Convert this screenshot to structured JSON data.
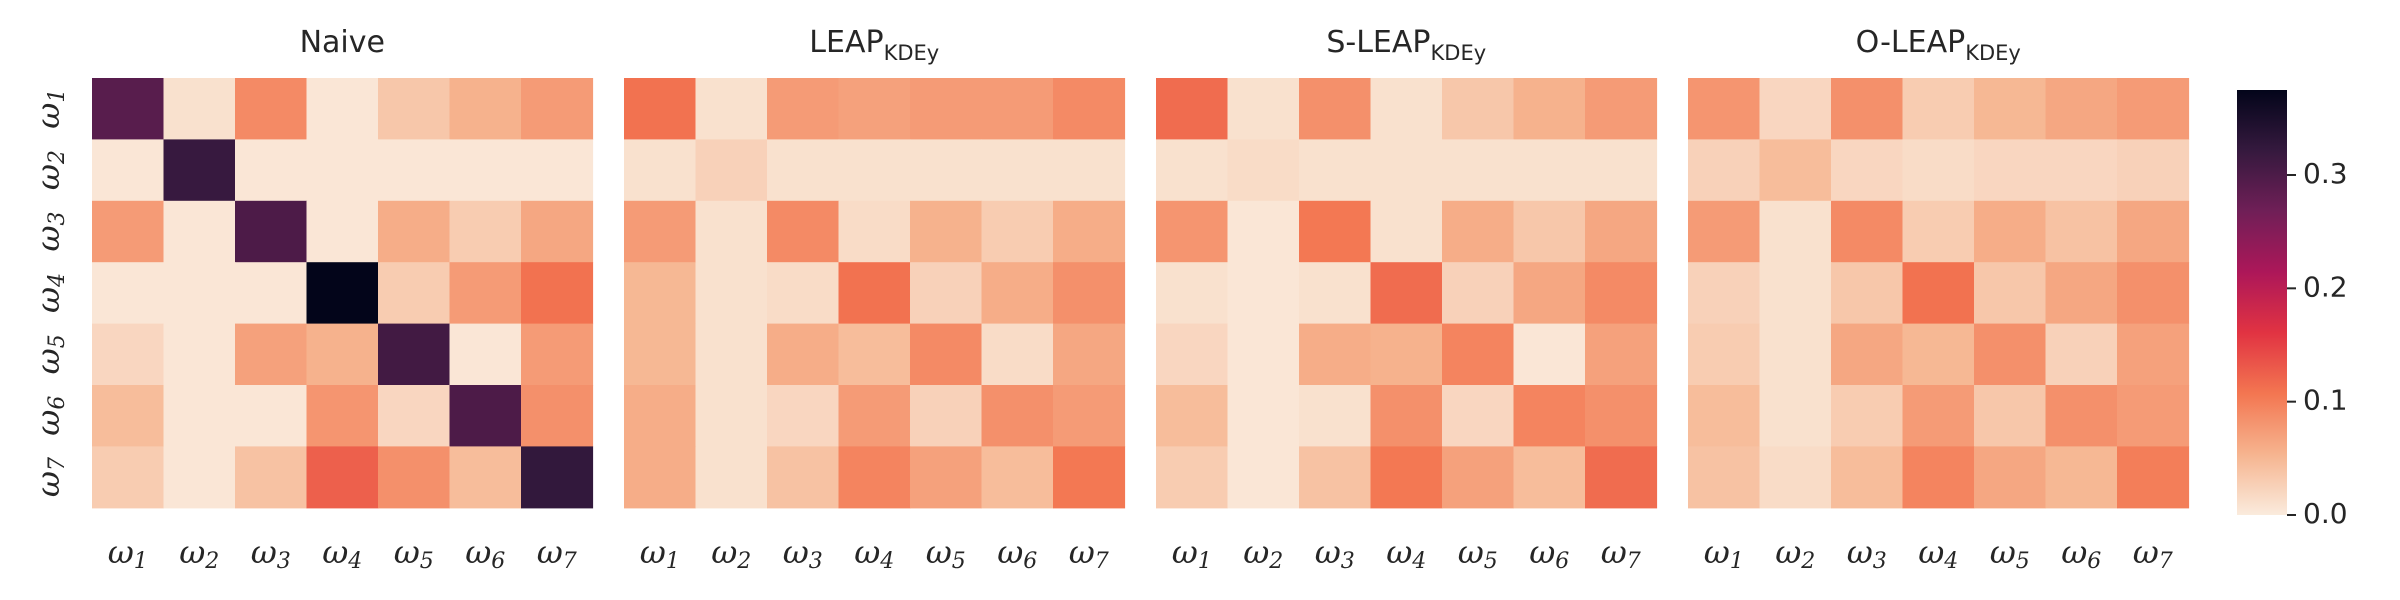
{
  "chart_data": [
    {
      "type": "heatmap",
      "title": "Naive",
      "title_subscript": "",
      "rows": [
        "ω1",
        "ω2",
        "ω3",
        "ω4",
        "ω5",
        "ω6",
        "ω7"
      ],
      "cols": [
        "ω1",
        "ω2",
        "ω3",
        "ω4",
        "ω5",
        "ω6",
        "ω7"
      ],
      "values": [
        [
          0.29,
          0.01,
          0.09,
          0.005,
          0.035,
          0.055,
          0.075
        ],
        [
          0.005,
          0.32,
          0.005,
          0.005,
          0.005,
          0.005,
          0.005
        ],
        [
          0.075,
          0.005,
          0.3,
          0.005,
          0.06,
          0.03,
          0.065
        ],
        [
          0.005,
          0.005,
          0.005,
          0.375,
          0.03,
          0.075,
          0.11
        ],
        [
          0.02,
          0.005,
          0.07,
          0.055,
          0.31,
          0.005,
          0.075
        ],
        [
          0.045,
          0.005,
          0.005,
          0.08,
          0.02,
          0.3,
          0.085
        ],
        [
          0.03,
          0.005,
          0.04,
          0.125,
          0.085,
          0.045,
          0.325
        ]
      ]
    },
    {
      "type": "heatmap",
      "title": "LEAP",
      "title_subscript": "KDEy",
      "rows": [
        "ω1",
        "ω2",
        "ω3",
        "ω4",
        "ω5",
        "ω6",
        "ω7"
      ],
      "cols": [
        "ω1",
        "ω2",
        "ω3",
        "ω4",
        "ω5",
        "ω6",
        "ω7"
      ],
      "values": [
        [
          0.11,
          0.01,
          0.075,
          0.07,
          0.075,
          0.075,
          0.09
        ],
        [
          0.01,
          0.025,
          0.01,
          0.01,
          0.01,
          0.01,
          0.01
        ],
        [
          0.075,
          0.01,
          0.09,
          0.015,
          0.055,
          0.03,
          0.06
        ],
        [
          0.05,
          0.01,
          0.015,
          0.11,
          0.025,
          0.06,
          0.085
        ],
        [
          0.05,
          0.01,
          0.06,
          0.045,
          0.09,
          0.015,
          0.065
        ],
        [
          0.06,
          0.01,
          0.02,
          0.075,
          0.025,
          0.085,
          0.075
        ],
        [
          0.06,
          0.01,
          0.04,
          0.095,
          0.07,
          0.045,
          0.105
        ]
      ]
    },
    {
      "type": "heatmap",
      "title": "S-LEAP",
      "title_subscript": "KDEy",
      "rows": [
        "ω1",
        "ω2",
        "ω3",
        "ω4",
        "ω5",
        "ω6",
        "ω7"
      ],
      "cols": [
        "ω1",
        "ω2",
        "ω3",
        "ω4",
        "ω5",
        "ω6",
        "ω7"
      ],
      "values": [
        [
          0.115,
          0.01,
          0.085,
          0.01,
          0.035,
          0.055,
          0.075
        ],
        [
          0.01,
          0.015,
          0.01,
          0.01,
          0.01,
          0.01,
          0.01
        ],
        [
          0.08,
          0.005,
          0.105,
          0.01,
          0.06,
          0.035,
          0.065
        ],
        [
          0.01,
          0.005,
          0.01,
          0.115,
          0.025,
          0.065,
          0.09
        ],
        [
          0.02,
          0.005,
          0.06,
          0.055,
          0.095,
          0.005,
          0.07
        ],
        [
          0.045,
          0.005,
          0.01,
          0.085,
          0.02,
          0.095,
          0.085
        ],
        [
          0.03,
          0.005,
          0.04,
          0.105,
          0.07,
          0.045,
          0.115
        ]
      ]
    },
    {
      "type": "heatmap",
      "title": "O-LEAP",
      "title_subscript": "KDEy",
      "rows": [
        "ω1",
        "ω2",
        "ω3",
        "ω4",
        "ω5",
        "ω6",
        "ω7"
      ],
      "cols": [
        "ω1",
        "ω2",
        "ω3",
        "ω4",
        "ω5",
        "ω6",
        "ω7"
      ],
      "values": [
        [
          0.08,
          0.02,
          0.085,
          0.03,
          0.05,
          0.065,
          0.075
        ],
        [
          0.025,
          0.045,
          0.02,
          0.015,
          0.02,
          0.02,
          0.025
        ],
        [
          0.075,
          0.01,
          0.09,
          0.03,
          0.06,
          0.04,
          0.065
        ],
        [
          0.025,
          0.01,
          0.035,
          0.11,
          0.035,
          0.065,
          0.085
        ],
        [
          0.03,
          0.01,
          0.065,
          0.05,
          0.085,
          0.025,
          0.07
        ],
        [
          0.045,
          0.01,
          0.03,
          0.075,
          0.035,
          0.085,
          0.075
        ],
        [
          0.04,
          0.015,
          0.045,
          0.095,
          0.065,
          0.05,
          0.1
        ]
      ]
    }
  ],
  "colorbar": {
    "min": 0.0,
    "max": 0.375,
    "ticks": [
      "0.0",
      "0.1",
      "0.2",
      "0.3"
    ],
    "tick_values": [
      0.0,
      0.1,
      0.2,
      0.3
    ],
    "colormap": "rocket_r",
    "colormap_stops": [
      "#faebdd",
      "#f6b48f",
      "#f37651",
      "#e13342",
      "#ad1759",
      "#701f57",
      "#35193e",
      "#03051a"
    ]
  }
}
